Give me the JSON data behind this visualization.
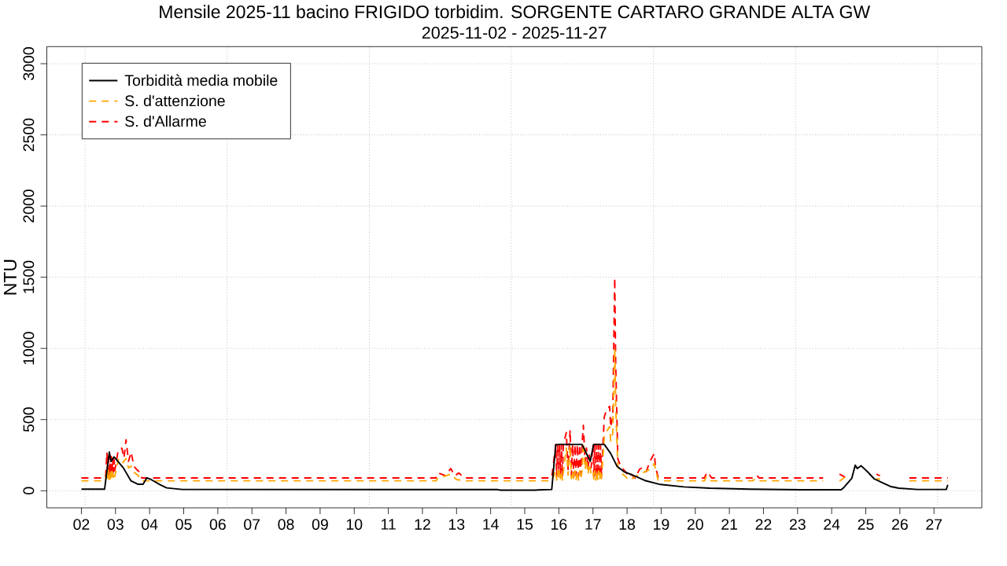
{
  "chart_data": {
    "type": "line",
    "title": "Mensile 2025-11 bacino FRIGIDO torbidim. SORGENTE CARTARO GRANDE ALTA GW",
    "subtitle": "2025-11-02 - 2025-11-27",
    "ylabel": "NTU",
    "xlim": [
      "2025-10-31T23:40",
      "2025-11-28T09:40"
    ],
    "ylim": [
      -120,
      3120
    ],
    "yticks": [
      0,
      500,
      1000,
      1500,
      2000,
      2500,
      3000
    ],
    "xticks": [
      {
        "value": "2025-11-02",
        "label": "02"
      },
      {
        "value": "2025-11-02T02:36",
        "label": null
      },
      {
        "value": "2025-11-03",
        "label": "03"
      },
      {
        "value": "2025-11-04",
        "label": "04"
      },
      {
        "value": "2025-11-05",
        "label": "05"
      },
      {
        "value": "2025-11-06",
        "label": "06"
      },
      {
        "value": "2025-11-06T06:36",
        "label": null
      },
      {
        "value": "2025-11-07",
        "label": "07"
      },
      {
        "value": "2025-11-08",
        "label": "08"
      },
      {
        "value": "2025-11-09",
        "label": "09"
      },
      {
        "value": "2025-11-10",
        "label": "10"
      },
      {
        "value": "2025-11-10T10:36",
        "label": null
      },
      {
        "value": "2025-11-11",
        "label": "11"
      },
      {
        "value": "2025-11-12",
        "label": "12"
      },
      {
        "value": "2025-11-13",
        "label": "13"
      },
      {
        "value": "2025-11-14",
        "label": "14"
      },
      {
        "value": "2025-11-14T14:36",
        "label": null
      },
      {
        "value": "2025-11-15",
        "label": "15"
      },
      {
        "value": "2025-11-16",
        "label": "16"
      },
      {
        "value": "2025-11-17",
        "label": "17"
      },
      {
        "value": "2025-11-18",
        "label": "18"
      },
      {
        "value": "2025-11-18T18:36",
        "label": null
      },
      {
        "value": "2025-11-19",
        "label": "19"
      },
      {
        "value": "2025-11-20",
        "label": "20"
      },
      {
        "value": "2025-11-21",
        "label": "21"
      },
      {
        "value": "2025-11-22",
        "label": "22"
      },
      {
        "value": "2025-11-22T22:36",
        "label": null
      },
      {
        "value": "2025-11-23",
        "label": "23"
      },
      {
        "value": "2025-11-24",
        "label": "24"
      },
      {
        "value": "2025-11-25",
        "label": "25"
      },
      {
        "value": "2025-11-26",
        "label": "26"
      },
      {
        "value": "2025-11-27",
        "label": "27"
      },
      {
        "value": "2025-11-27T02:36",
        "label": null
      }
    ],
    "grid": true,
    "legend": "top left",
    "series": [
      {
        "name": "Torbidità media mobile",
        "color": "#000000",
        "line_style": "solid",
        "x": [
          "2025-11-02T00:00",
          "2025-11-02T16:20",
          "2025-11-02T19:40",
          "2025-11-02T20:50",
          "2025-11-02T23:00",
          "2025-11-03T05:30",
          "2025-11-03T10:50",
          "2025-11-03T15:40",
          "2025-11-03T19:25",
          "2025-11-03T22:05",
          "2025-11-04T01:00",
          "2025-11-04T07:25",
          "2025-11-04T12:00",
          "2025-11-04T23:00",
          "2025-11-14T05:00",
          "2025-11-14T07:00",
          "2025-11-15T08:00",
          "2025-11-15T09:00",
          "2025-11-15T19:00",
          "2025-11-15T21:50",
          "2025-11-16T00:00",
          "2025-11-16T16:20",
          "2025-11-16T22:05",
          "2025-11-17T00:30",
          "2025-11-17T08:00",
          "2025-11-17T12:30",
          "2025-11-17T17:00",
          "2025-11-17T21:50",
          "2025-11-18T05:00",
          "2025-11-18T12:30",
          "2025-11-18T23:30",
          "2025-11-19T16:00",
          "2025-11-20T10:20",
          "2025-11-21T14:10",
          "2025-11-23T03:00",
          "2025-11-24T06:40",
          "2025-11-24T08:40",
          "2025-11-24T14:10",
          "2025-11-24T16:35",
          "2025-11-24T18:00",
          "2025-11-24T20:40",
          "2025-11-25T01:10",
          "2025-11-25T06:00",
          "2025-11-25T11:30",
          "2025-11-25T17:45",
          "2025-11-25T23:15",
          "2025-11-26T12:15",
          "2025-11-27T08:40",
          "2025-11-27T09:40"
        ],
        "values": [
          11,
          11,
          272,
          205,
          238,
          161,
          70,
          46,
          46,
          91,
          79,
          42,
          20,
          9,
          8,
          4,
          4,
          6,
          9,
          323,
          325,
          325,
          207,
          325,
          325,
          262,
          171,
          134,
          106,
          72,
          44,
          27,
          18,
          11,
          7,
          7,
          24,
          88,
          180,
          156,
          176,
          134,
          83,
          57,
          29,
          18,
          9,
          9,
          42
        ]
      },
      {
        "name": "S. d'attenzione",
        "color": "#ffa500",
        "line_style": "dashed",
        "x": [
          "2025-11-02T00:00",
          "2025-11-02T17:00",
          "2025-11-02T18:00",
          "2025-11-02T18:30",
          "2025-11-02T19:00",
          "2025-11-02T19:30",
          "2025-11-02T20:00",
          "2025-11-02T20:30",
          "2025-11-02T21:00",
          "2025-11-02T21:30",
          "2025-11-02T22:00",
          "2025-11-02T22:30",
          "2025-11-02T23:00",
          "2025-11-02T23:30",
          "2025-11-03T02:00",
          "2025-11-03T04:30",
          "2025-11-03T07:25",
          "2025-11-03T09:10",
          "2025-11-03T11:00",
          "2025-11-03T13:00",
          "2025-11-03T16:00",
          "2025-11-03T18:30",
          "2025-11-12T09:30",
          "2025-11-12T10:50",
          "2025-11-12T19:55",
          "2025-11-13T00:00",
          "2025-11-13T05:15",
          "2025-11-15T19:00",
          "2025-11-15T21:50",
          "2025-11-15T22:30",
          "2025-11-15T23:10",
          "2025-11-15T23:50",
          "2025-11-16T00:30",
          "2025-11-16T01:10",
          "2025-11-16T01:50",
          "2025-11-16T02:30",
          "2025-11-16T03:10",
          "2025-11-16T05:15",
          "2025-11-16T06:30",
          "2025-11-16T07:55",
          "2025-11-16T08:50",
          "2025-11-16T09:40",
          "2025-11-16T10:30",
          "2025-11-16T11:20",
          "2025-11-16T12:10",
          "2025-11-16T13:00",
          "2025-11-16T13:50",
          "2025-11-16T14:40",
          "2025-11-16T15:30",
          "2025-11-16T16:20",
          "2025-11-16T17:15",
          "2025-11-16T18:30",
          "2025-11-16T19:30",
          "2025-11-16T20:30",
          "2025-11-16T21:30",
          "2025-11-16T22:40",
          "2025-11-17T00:00",
          "2025-11-17T00:40",
          "2025-11-17T01:20",
          "2025-11-17T02:00",
          "2025-11-17T02:40",
          "2025-11-17T03:20",
          "2025-11-17T04:00",
          "2025-11-17T04:40",
          "2025-11-17T05:20",
          "2025-11-17T06:00",
          "2025-11-17T08:00",
          "2025-11-17T09:50",
          "2025-11-17T11:45",
          "2025-11-17T12:30",
          "2025-11-17T13:55",
          "2025-11-17T15:20",
          "2025-11-17T16:00",
          "2025-11-17T17:30",
          "2025-11-17T19:30",
          "2025-11-17T22:50",
          "2025-11-18T01:25",
          "2025-11-18T08:50",
          "2025-11-18T16:05",
          "2025-11-18T19:10",
          "2025-11-18T21:50",
          "2025-11-18T23:30",
          "2025-11-20T06:30",
          "2025-11-20T07:40",
          "2025-11-20T09:00",
          "2025-11-20T11:30",
          "2025-11-21T16:00",
          "2025-11-21T19:00",
          "2025-11-21T21:00",
          "2025-11-23T18:00",
          "2025-11-24T00:00",
          "2025-11-24T05:30",
          "2025-11-24T09:30",
          "2025-11-24T10:00",
          "2025-11-25T07:30",
          "2025-11-25T10:00",
          "2025-11-25T12:00",
          "2025-11-26T06:40",
          "2025-11-27T09:40"
        ],
        "values": [
          70,
          70,
          150,
          75,
          145,
          80,
          140,
          85,
          135,
          90,
          130,
          95,
          125,
          100,
          220,
          189,
          226,
          160,
          172,
          130,
          106,
          70,
          70,
          88,
          116,
          79,
          70,
          70,
          140,
          75,
          140,
          80,
          140,
          85,
          140,
          75,
          135,
          300,
          110,
          320,
          85,
          140,
          75,
          140,
          80,
          140,
          75,
          140,
          85,
          140,
          340,
          150,
          220,
          115,
          190,
          120,
          140,
          75,
          140,
          75,
          140,
          80,
          140,
          75,
          135,
          85,
          380,
          420,
          450,
          350,
          400,
          1000,
          600,
          170,
          130,
          100,
          75,
          115,
          150,
          190,
          75,
          70,
          70,
          97,
          80,
          70,
          70,
          85,
          70,
          70,
          null,
          68,
          95,
          null,
          85,
          80,
          null,
          70,
          70
        ]
      },
      {
        "name": "S. d'Allarme",
        "color": "#ff0000",
        "line_style": "dashed",
        "x": [
          "2025-11-02T00:00",
          "2025-11-02T17:00",
          "2025-11-02T18:00",
          "2025-11-02T18:30",
          "2025-11-02T19:00",
          "2025-11-02T19:30",
          "2025-11-02T20:00",
          "2025-11-02T20:30",
          "2025-11-02T21:00",
          "2025-11-02T21:30",
          "2025-11-02T22:00",
          "2025-11-02T22:30",
          "2025-11-02T23:00",
          "2025-11-02T23:30",
          "2025-11-03T02:00",
          "2025-11-03T04:30",
          "2025-11-03T06:00",
          "2025-11-03T07:25",
          "2025-11-03T09:10",
          "2025-11-03T11:00",
          "2025-11-03T13:00",
          "2025-11-03T14:40",
          "2025-11-03T16:35",
          "2025-11-03T18:30",
          "2025-11-12T09:30",
          "2025-11-12T10:50",
          "2025-11-12T16:20",
          "2025-11-12T19:55",
          "2025-11-12T22:50",
          "2025-11-13T01:40",
          "2025-11-13T05:15",
          "2025-11-15T19:00",
          "2025-11-15T21:50",
          "2025-11-15T22:30",
          "2025-11-15T23:10",
          "2025-11-15T23:50",
          "2025-11-16T00:30",
          "2025-11-16T01:10",
          "2025-11-16T01:50",
          "2025-11-16T02:30",
          "2025-11-16T03:10",
          "2025-11-16T05:15",
          "2025-11-16T06:30",
          "2025-11-16T07:55",
          "2025-11-16T08:50",
          "2025-11-16T09:40",
          "2025-11-16T10:30",
          "2025-11-16T11:20",
          "2025-11-16T12:10",
          "2025-11-16T13:00",
          "2025-11-16T13:50",
          "2025-11-16T14:40",
          "2025-11-16T15:30",
          "2025-11-16T16:20",
          "2025-11-16T17:15",
          "2025-11-16T18:30",
          "2025-11-16T19:30",
          "2025-11-16T20:30",
          "2025-11-16T21:30",
          "2025-11-16T22:40",
          "2025-11-17T00:00",
          "2025-11-17T00:40",
          "2025-11-17T01:20",
          "2025-11-17T02:00",
          "2025-11-17T02:40",
          "2025-11-17T03:20",
          "2025-11-17T04:00",
          "2025-11-17T04:40",
          "2025-11-17T05:20",
          "2025-11-17T06:00",
          "2025-11-17T08:00",
          "2025-11-17T09:50",
          "2025-11-17T11:45",
          "2025-11-17T12:30",
          "2025-11-17T13:55",
          "2025-11-17T15:20",
          "2025-11-17T16:00",
          "2025-11-17T17:30",
          "2025-11-17T19:30",
          "2025-11-17T22:50",
          "2025-11-18T01:25",
          "2025-11-18T03:00",
          "2025-11-18T05:45",
          "2025-11-18T08:50",
          "2025-11-18T10:35",
          "2025-11-18T13:30",
          "2025-11-18T16:05",
          "2025-11-18T19:10",
          "2025-11-18T20:00",
          "2025-11-18T21:50",
          "2025-11-18T23:30",
          "2025-11-20T06:30",
          "2025-11-20T07:40",
          "2025-11-20T09:00",
          "2025-11-20T10:00",
          "2025-11-20T11:30",
          "2025-11-21T16:00",
          "2025-11-21T19:00",
          "2025-11-21T21:00",
          "2025-11-23T18:00",
          "2025-11-24T00:00",
          "2025-11-24T05:30",
          "2025-11-24T09:30",
          "2025-11-24T10:00",
          "2025-11-25T07:30",
          "2025-11-25T10:00",
          "2025-11-25T12:00",
          "2025-11-26T06:40",
          "2025-11-27T09:40"
        ],
        "values": [
          90,
          90,
          271,
          100,
          265,
          100,
          250,
          110,
          240,
          120,
          230,
          130,
          220,
          140,
          290,
          299,
          230,
          358,
          207,
          271,
          171,
          152,
          134,
          90,
          90,
          125,
          106,
          156,
          106,
          125,
          90,
          90,
          325,
          100,
          325,
          105,
          325,
          110,
          325,
          100,
          320,
          409,
          150,
          427,
          110,
          325,
          100,
          325,
          105,
          325,
          100,
          325,
          110,
          325,
          460,
          200,
          300,
          152,
          250,
          160,
          325,
          100,
          325,
          100,
          325,
          105,
          325,
          100,
          320,
          110,
          519,
          574,
          593,
          446,
          519,
          1496,
          900,
          226,
          171,
          134,
          97,
          116,
          88,
          152,
          161,
          134,
          207,
          262,
          171,
          97,
          90,
          90,
          119,
          100,
          111,
          90,
          90,
          110,
          90,
          90,
          null,
          117,
          95,
          null,
          117,
          105,
          null,
          90,
          90
        ]
      }
    ]
  }
}
